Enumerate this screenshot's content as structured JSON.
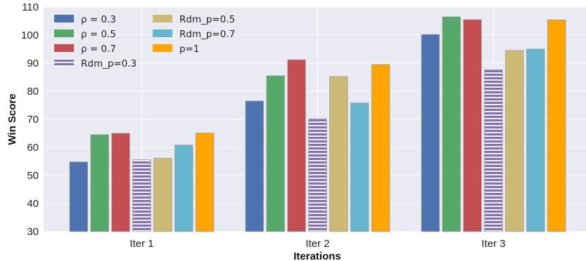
{
  "chart_data": {
    "type": "bar",
    "title": "",
    "xlabel": "Iterations",
    "ylabel": "Win Score",
    "ylim": [
      30,
      110
    ],
    "yticks": [
      30,
      40,
      50,
      60,
      70,
      80,
      90,
      100,
      110
    ],
    "categories": [
      "Iter 1",
      "Iter 2",
      "Iter 3"
    ],
    "grid": true,
    "legend_position": "top-left",
    "series": [
      {
        "name": "ρ = 0.3",
        "color": "#4C72B0",
        "hatch": false,
        "values": [
          54.8,
          76.5,
          100.2
        ]
      },
      {
        "name": "ρ = 0.5",
        "color": "#55A868",
        "hatch": false,
        "values": [
          64.5,
          85.5,
          106.5
        ]
      },
      {
        "name": "ρ = 0.7",
        "color": "#C44E52",
        "hatch": false,
        "values": [
          65.0,
          91.2,
          105.5
        ]
      },
      {
        "name": "Rdm_p=0.3",
        "color": "#8172B2",
        "hatch": true,
        "values": [
          55.6,
          70.2,
          87.6
        ]
      },
      {
        "name": "Rdm_p=0.5",
        "color": "#CCB974",
        "hatch": false,
        "values": [
          56.1,
          85.2,
          94.5
        ]
      },
      {
        "name": "Rdm_p=0.7",
        "color": "#64B5CD",
        "hatch": false,
        "values": [
          60.8,
          75.8,
          95.0
        ]
      },
      {
        "name": "p=1",
        "color": "#FFA500",
        "hatch": false,
        "values": [
          65.1,
          89.5,
          105.4
        ]
      }
    ]
  }
}
